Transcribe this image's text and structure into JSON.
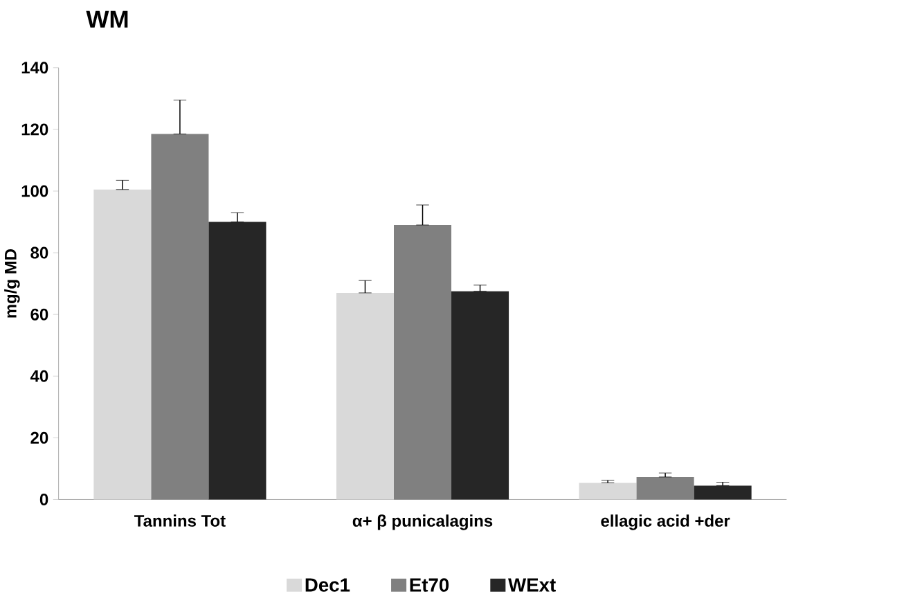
{
  "chart_data": {
    "type": "bar",
    "title": "WM",
    "ylabel": "mg/g MD",
    "categories": [
      "Tannins Tot",
      "α+ β punicalagins",
      "ellagic acid +der"
    ],
    "series": [
      {
        "name": "Dec1",
        "color": "#d9d9d9",
        "values": [
          100.5,
          67,
          5.4
        ],
        "errors": [
          [
            100.5,
            103.5
          ],
          [
            67,
            71
          ],
          [
            5.4,
            6.2
          ]
        ]
      },
      {
        "name": "Et70",
        "color": "#808080",
        "values": [
          118.5,
          89,
          7.3
        ],
        "errors": [
          [
            118.5,
            129.5
          ],
          [
            89,
            95.5
          ],
          [
            7.3,
            8.6
          ]
        ]
      },
      {
        "name": "WExt",
        "color": "#262626",
        "values": [
          90,
          67.5,
          4.5
        ],
        "errors": [
          [
            90,
            93
          ],
          [
            67.5,
            69.5
          ],
          [
            4.5,
            5.6
          ]
        ]
      }
    ],
    "ylim": [
      0,
      140
    ],
    "yticks": [
      0,
      20,
      40,
      60,
      80,
      100,
      120,
      140
    ],
    "grid": false,
    "legend": "bottom"
  }
}
